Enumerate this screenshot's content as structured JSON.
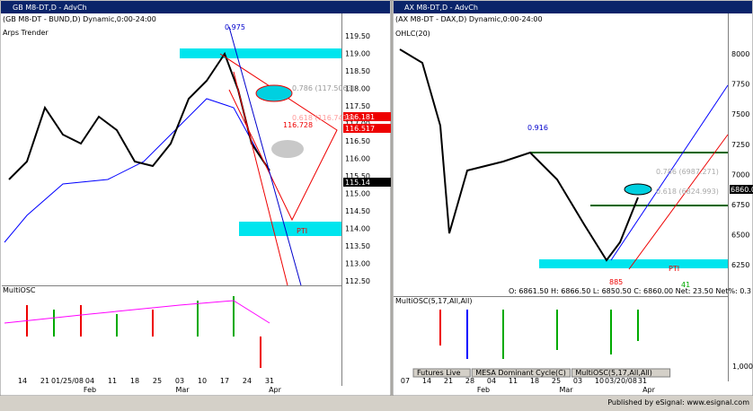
{
  "left": {
    "title": "GB M8-DT,D - AdvCh",
    "subtitle": "(GB M8-DT - BUND,D) Dynamic,0:00-24:00",
    "study": "Arps Trender",
    "price_labels": [
      "119.50",
      "119.00",
      "118.50",
      "118.00",
      "117.50",
      "117.00",
      "116.50",
      "116.00",
      "115.50",
      "115.00",
      "114.50",
      "114.00",
      "113.50",
      "113.00",
      "112.50"
    ],
    "price_boxes": [
      "116.517",
      "116.181",
      "115.14"
    ],
    "annotations": [
      "0.975",
      "0.786 (117.5063)",
      "0.618 (116.7419)",
      "116.728",
      "PTI"
    ],
    "osc": "MultiOSC",
    "dates": [
      "14",
      "21",
      "01/25/08",
      "04",
      "11",
      "18",
      "25",
      "03",
      "10",
      "17",
      "24",
      "31"
    ],
    "months": [
      "Feb",
      "Mar",
      "Apr"
    ]
  },
  "right": {
    "title": "AX M8-DT,D - AdvCh",
    "subtitle": "(AX M8-DT - DAX,D) Dynamic,0:00-24:00",
    "study": "OHLC(20)",
    "price_labels": [
      "8000",
      "7750",
      "7500",
      "7250",
      "7000",
      "6750",
      "6500",
      "6250"
    ],
    "price_box": "6860.00",
    "annotations": [
      "0.916",
      "0.786 (6987.271)",
      "0.618 (6824.993)",
      "PTI",
      "885",
      "41"
    ],
    "quote": "O: 6861.50   H: 6866.50   L: 6850.50   C: 6860.00   Net: 23.50   Net%: 0.3",
    "osc": "MultiOSC(5,17,All,All)",
    "osc_labels": [
      "1,000"
    ],
    "dates": [
      "07",
      "14",
      "21",
      "28",
      "04",
      "11",
      "18",
      "25",
      "03",
      "10",
      "03/20/08",
      "31"
    ],
    "months": [
      "Feb",
      "Mar",
      "Apr"
    ],
    "tabs": [
      "Futures Live",
      "MESA Dominant Cycle(C)",
      "MultiOSC(5,17,All,All)"
    ]
  },
  "status": "Published by eSignal: www.esignal.com"
}
